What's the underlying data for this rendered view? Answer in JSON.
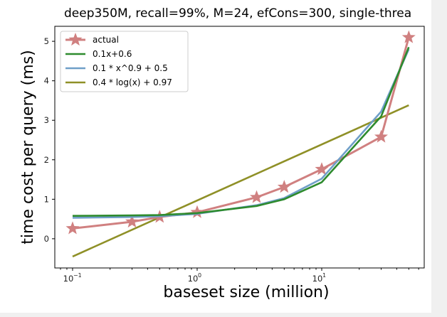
{
  "chart_data": {
    "type": "line",
    "title": "deep350M, recall=99%, M=24, efCons=300, single-threa",
    "xlabel": "baseset size (million)",
    "ylabel": "time cost per query (ms)",
    "xscale": "log",
    "xlim": [
      0.072,
      66.5
    ],
    "ylim": [
      -0.74,
      5.38
    ],
    "xticks": [
      {
        "value": 0.1,
        "base": "10",
        "exp": "−1"
      },
      {
        "value": 1,
        "base": "10",
        "exp": "0"
      },
      {
        "value": 10,
        "base": "10",
        "exp": "1"
      }
    ],
    "yticks": [
      0,
      1,
      2,
      3,
      4,
      5
    ],
    "grid": false,
    "legend_position": "top-left",
    "x": [
      0.1,
      0.3,
      0.5,
      1,
      3,
      5,
      10,
      30,
      50
    ],
    "series": [
      {
        "name": "actual",
        "color": "#d08080",
        "marker": "star",
        "values": [
          0.26,
          0.43,
          0.55,
          0.67,
          1.05,
          1.31,
          1.76,
          2.58,
          5.1
        ]
      },
      {
        "name": "0.1x+0.6",
        "color": "#2e8b2e",
        "marker": "none",
        "values": [
          0.58,
          0.59,
          0.6,
          0.65,
          0.83,
          1.0,
          1.43,
          3.1,
          4.85
        ]
      },
      {
        "name": "0.1 * x^0.9 + 0.5",
        "color": "#6f9fc8",
        "marker": "none",
        "values": [
          0.53,
          0.55,
          0.57,
          0.63,
          0.85,
          1.03,
          1.52,
          3.22,
          4.8
        ]
      },
      {
        "name": "0.4 * log(x) + 0.97",
        "color": "#8f9027",
        "marker": "none",
        "values": [
          -0.45,
          null,
          null,
          null,
          null,
          null,
          null,
          null,
          3.38
        ]
      }
    ]
  }
}
